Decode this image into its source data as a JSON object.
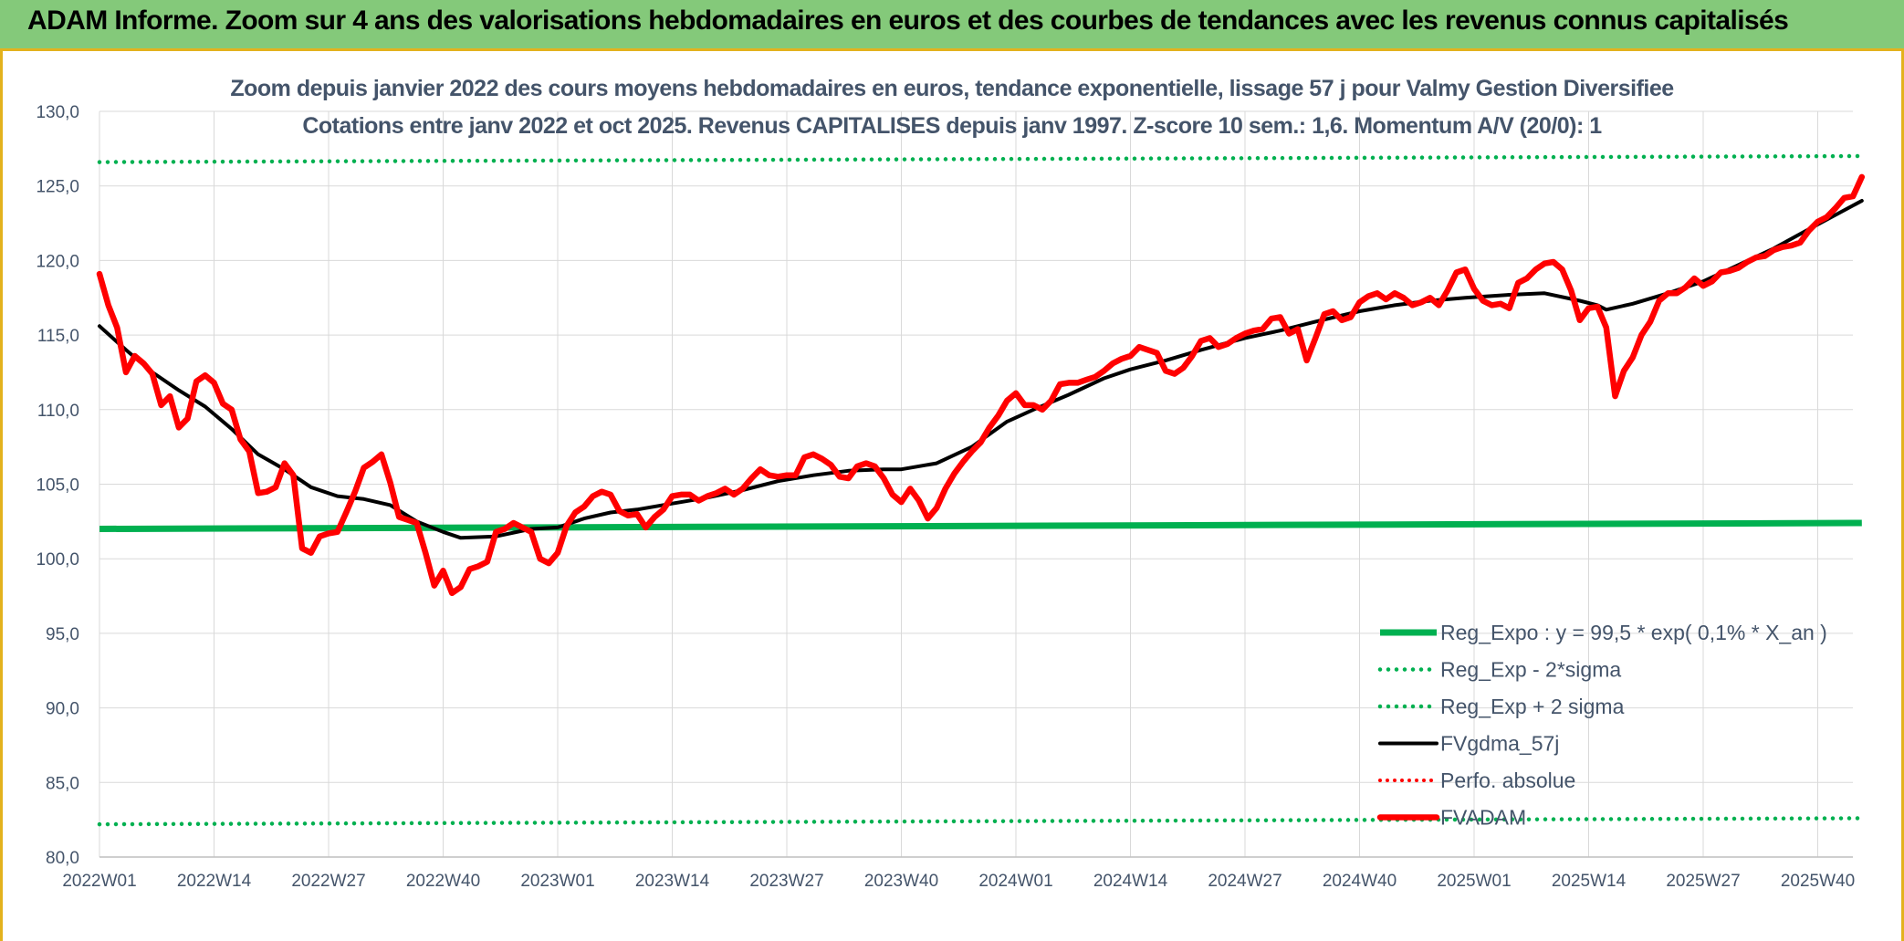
{
  "header": {
    "title": "ADAM Informe. Zoom sur 4 ans des valorisations hebdomadaires en euros et des courbes de tendances avec les revenus connus capitalisés"
  },
  "colors": {
    "banner": "#84c97a",
    "reg_expo": "#00b050",
    "fvgdma": "#000000",
    "fvadam": "#ff0000",
    "perfo": "#ff0000",
    "grid": "#d9d9d9",
    "text": "#44546a"
  },
  "chart_data": {
    "type": "line",
    "title": "Zoom depuis janvier 2022 des cours moyens hebdomadaires en euros, tendance exponentielle, lissage 57 j pour Valmy Gestion Diversifiee",
    "subtitle": "Cotations entre janv 2022 et oct 2025. Revenus CAPITALISES depuis janv 1997. Z-score 10 sem.: 1,6. Momentum A/V (20/0): 1",
    "ylim": [
      80,
      130
    ],
    "yticks": [
      "80,0",
      "85,0",
      "90,0",
      "95,0",
      "100,0",
      "105,0",
      "110,0",
      "115,0",
      "120,0",
      "125,0",
      "130,0"
    ],
    "xticks": [
      "2022W01",
      "2022W14",
      "2022W27",
      "2022W40",
      "2023W01",
      "2023W14",
      "2023W27",
      "2023W40",
      "2024W01",
      "2024W14",
      "2024W27",
      "2024W40",
      "2025W01",
      "2025W14",
      "2025W27",
      "2025W40"
    ],
    "grid": true,
    "legend_position": "bottom-right",
    "series": [
      {
        "name": "Reg_Expo : y = 99,5 * exp( 0,1% *  X_an )",
        "style": "solid-thick",
        "points": [
          [
            "2022W01",
            102.0
          ],
          [
            "2025W45",
            102.4
          ]
        ]
      },
      {
        "name": "Reg_Exp - 2*sigma",
        "style": "dotted",
        "points": [
          [
            "2022W01",
            82.2
          ],
          [
            "2025W45",
            82.6
          ]
        ]
      },
      {
        "name": "Reg_Exp + 2 sigma",
        "style": "dotted",
        "points": [
          [
            "2022W01",
            126.6
          ],
          [
            "2025W45",
            127.0
          ]
        ]
      },
      {
        "name": "FVgdma_57j",
        "style": "solid",
        "points": [
          [
            "2022W01",
            115.6
          ],
          [
            "2022W04",
            114.0
          ],
          [
            "2022W07",
            112.5
          ],
          [
            "2022W10",
            111.3
          ],
          [
            "2022W13",
            110.2
          ],
          [
            "2022W16",
            108.7
          ],
          [
            "2022W19",
            107.0
          ],
          [
            "2022W22",
            106.0
          ],
          [
            "2022W25",
            104.8
          ],
          [
            "2022W28",
            104.2
          ],
          [
            "2022W31",
            104.0
          ],
          [
            "2022W34",
            103.6
          ],
          [
            "2022W37",
            102.5
          ],
          [
            "2022W40",
            101.8
          ],
          [
            "2022W42",
            101.4
          ],
          [
            "2022W46",
            101.5
          ],
          [
            "2022W50",
            102.0
          ],
          [
            "2023W01",
            102.1
          ],
          [
            "2023W04",
            102.7
          ],
          [
            "2023W07",
            103.1
          ],
          [
            "2023W10",
            103.3
          ],
          [
            "2023W14",
            103.7
          ],
          [
            "2023W18",
            104.1
          ],
          [
            "2023W22",
            104.6
          ],
          [
            "2023W26",
            105.2
          ],
          [
            "2023W30",
            105.6
          ],
          [
            "2023W34",
            105.9
          ],
          [
            "2023W38",
            106.0
          ],
          [
            "2023W40",
            106.0
          ],
          [
            "2023W44",
            106.4
          ],
          [
            "2023W48",
            107.5
          ],
          [
            "2023W52",
            109.2
          ],
          [
            "2024W03",
            110.0
          ],
          [
            "2024W07",
            111.0
          ],
          [
            "2024W11",
            112.1
          ],
          [
            "2024W14",
            112.7
          ],
          [
            "2024W18",
            113.3
          ],
          [
            "2024W22",
            114.0
          ],
          [
            "2024W27",
            114.8
          ],
          [
            "2024W31",
            115.3
          ],
          [
            "2024W35",
            115.9
          ],
          [
            "2024W40",
            116.6
          ],
          [
            "2024W44",
            117.0
          ],
          [
            "2024W48",
            117.3
          ],
          [
            "2024W52",
            117.5
          ],
          [
            "2025W05",
            117.7
          ],
          [
            "2025W09",
            117.8
          ],
          [
            "2025W13",
            117.3
          ],
          [
            "2025W15",
            117.0
          ],
          [
            "2025W16",
            116.7
          ],
          [
            "2025W19",
            117.1
          ],
          [
            "2025W23",
            117.8
          ],
          [
            "2025W27",
            118.6
          ],
          [
            "2025W31",
            119.7
          ],
          [
            "2025W35",
            120.8
          ],
          [
            "2025W39",
            122.1
          ],
          [
            "2025W45",
            124.0
          ]
        ]
      },
      {
        "name": "Perfo. absolue",
        "style": "dotted",
        "points": []
      },
      {
        "name": "FVADAM",
        "style": "solid-thick",
        "points": [
          [
            "2022W01",
            119.1
          ],
          [
            "2022W02",
            117.0
          ],
          [
            "2022W03",
            115.5
          ],
          [
            "2022W04",
            112.5
          ],
          [
            "2022W05",
            113.6
          ],
          [
            "2022W06",
            113.1
          ],
          [
            "2022W07",
            112.4
          ],
          [
            "2022W08",
            110.3
          ],
          [
            "2022W09",
            110.9
          ],
          [
            "2022W10",
            108.8
          ],
          [
            "2022W11",
            109.4
          ],
          [
            "2022W12",
            111.9
          ],
          [
            "2022W13",
            112.3
          ],
          [
            "2022W14",
            111.8
          ],
          [
            "2022W15",
            110.4
          ],
          [
            "2022W16",
            110.0
          ],
          [
            "2022W17",
            108.0
          ],
          [
            "2022W18",
            107.2
          ],
          [
            "2022W19",
            104.4
          ],
          [
            "2022W20",
            104.5
          ],
          [
            "2022W21",
            104.8
          ],
          [
            "2022W22",
            106.4
          ],
          [
            "2022W23",
            105.6
          ],
          [
            "2022W24",
            100.7
          ],
          [
            "2022W25",
            100.4
          ],
          [
            "2022W26",
            101.5
          ],
          [
            "2022W27",
            101.7
          ],
          [
            "2022W28",
            101.8
          ],
          [
            "2022W29",
            103.1
          ],
          [
            "2022W30",
            104.5
          ],
          [
            "2022W31",
            106.1
          ],
          [
            "2022W32",
            106.5
          ],
          [
            "2022W33",
            107.0
          ],
          [
            "2022W34",
            105.1
          ],
          [
            "2022W35",
            102.8
          ],
          [
            "2022W36",
            102.6
          ],
          [
            "2022W37",
            102.4
          ],
          [
            "2022W38",
            100.4
          ],
          [
            "2022W39",
            98.2
          ],
          [
            "2022W40",
            99.2
          ],
          [
            "2022W41",
            97.7
          ],
          [
            "2022W42",
            98.1
          ],
          [
            "2022W43",
            99.3
          ],
          [
            "2022W44",
            99.5
          ],
          [
            "2022W45",
            99.8
          ],
          [
            "2022W46",
            101.8
          ],
          [
            "2022W47",
            102.0
          ],
          [
            "2022W48",
            102.4
          ],
          [
            "2022W49",
            102.1
          ],
          [
            "2022W50",
            101.8
          ],
          [
            "2022W51",
            100.0
          ],
          [
            "2022W52",
            99.7
          ],
          [
            "2023W01",
            100.4
          ],
          [
            "2023W02",
            102.2
          ],
          [
            "2023W03",
            103.1
          ],
          [
            "2023W04",
            103.5
          ],
          [
            "2023W05",
            104.2
          ],
          [
            "2023W06",
            104.5
          ],
          [
            "2023W07",
            104.3
          ],
          [
            "2023W08",
            103.2
          ],
          [
            "2023W09",
            102.9
          ],
          [
            "2023W10",
            103.0
          ],
          [
            "2023W11",
            102.1
          ],
          [
            "2023W12",
            102.8
          ],
          [
            "2023W13",
            103.3
          ],
          [
            "2023W14",
            104.2
          ],
          [
            "2023W15",
            104.3
          ],
          [
            "2023W16",
            104.3
          ],
          [
            "2023W17",
            103.9
          ],
          [
            "2023W18",
            104.2
          ],
          [
            "2023W19",
            104.4
          ],
          [
            "2023W20",
            104.7
          ],
          [
            "2023W21",
            104.3
          ],
          [
            "2023W22",
            104.7
          ],
          [
            "2023W23",
            105.4
          ],
          [
            "2023W24",
            106.0
          ],
          [
            "2023W25",
            105.6
          ],
          [
            "2023W26",
            105.5
          ],
          [
            "2023W27",
            105.6
          ],
          [
            "2023W28",
            105.6
          ],
          [
            "2023W29",
            106.8
          ],
          [
            "2023W30",
            107.0
          ],
          [
            "2023W31",
            106.7
          ],
          [
            "2023W32",
            106.3
          ],
          [
            "2023W33",
            105.5
          ],
          [
            "2023W34",
            105.4
          ],
          [
            "2023W35",
            106.2
          ],
          [
            "2023W36",
            106.4
          ],
          [
            "2023W37",
            106.2
          ],
          [
            "2023W38",
            105.4
          ],
          [
            "2023W39",
            104.3
          ],
          [
            "2023W40",
            103.8
          ],
          [
            "2023W41",
            104.7
          ],
          [
            "2023W42",
            103.9
          ],
          [
            "2023W43",
            102.7
          ],
          [
            "2023W44",
            103.4
          ],
          [
            "2023W45",
            104.7
          ],
          [
            "2023W46",
            105.7
          ],
          [
            "2023W47",
            106.5
          ],
          [
            "2023W48",
            107.2
          ],
          [
            "2023W49",
            107.8
          ],
          [
            "2023W50",
            108.8
          ],
          [
            "2023W51",
            109.6
          ],
          [
            "2023W52",
            110.6
          ],
          [
            "2024W01",
            111.1
          ],
          [
            "2024W02",
            110.3
          ],
          [
            "2024W03",
            110.3
          ],
          [
            "2024W04",
            110.0
          ],
          [
            "2024W05",
            110.6
          ],
          [
            "2024W06",
            111.7
          ],
          [
            "2024W07",
            111.8
          ],
          [
            "2024W08",
            111.8
          ],
          [
            "2024W09",
            112.0
          ],
          [
            "2024W10",
            112.2
          ],
          [
            "2024W11",
            112.6
          ],
          [
            "2024W12",
            113.1
          ],
          [
            "2024W13",
            113.4
          ],
          [
            "2024W14",
            113.6
          ],
          [
            "2024W15",
            114.2
          ],
          [
            "2024W16",
            114.0
          ],
          [
            "2024W17",
            113.8
          ],
          [
            "2024W18",
            112.6
          ],
          [
            "2024W19",
            112.4
          ],
          [
            "2024W20",
            112.8
          ],
          [
            "2024W21",
            113.6
          ],
          [
            "2024W22",
            114.6
          ],
          [
            "2024W23",
            114.8
          ],
          [
            "2024W24",
            114.2
          ],
          [
            "2024W25",
            114.4
          ],
          [
            "2024W26",
            114.8
          ],
          [
            "2024W27",
            115.1
          ],
          [
            "2024W28",
            115.3
          ],
          [
            "2024W29",
            115.4
          ],
          [
            "2024W30",
            116.1
          ],
          [
            "2024W31",
            116.2
          ],
          [
            "2024W32",
            115.1
          ],
          [
            "2024W33",
            115.4
          ],
          [
            "2024W34",
            113.3
          ],
          [
            "2024W35",
            114.8
          ],
          [
            "2024W36",
            116.4
          ],
          [
            "2024W37",
            116.6
          ],
          [
            "2024W38",
            116.0
          ],
          [
            "2024W39",
            116.2
          ],
          [
            "2024W40",
            117.2
          ],
          [
            "2024W41",
            117.6
          ],
          [
            "2024W42",
            117.8
          ],
          [
            "2024W43",
            117.4
          ],
          [
            "2024W44",
            117.8
          ],
          [
            "2024W45",
            117.5
          ],
          [
            "2024W46",
            117.0
          ],
          [
            "2024W47",
            117.2
          ],
          [
            "2024W48",
            117.5
          ],
          [
            "2024W49",
            117.0
          ],
          [
            "2024W50",
            118.0
          ],
          [
            "2024W51",
            119.2
          ],
          [
            "2024W52",
            119.4
          ],
          [
            "2025W01",
            118.1
          ],
          [
            "2025W02",
            117.3
          ],
          [
            "2025W03",
            117.0
          ],
          [
            "2025W04",
            117.1
          ],
          [
            "2025W05",
            116.8
          ],
          [
            "2025W06",
            118.5
          ],
          [
            "2025W07",
            118.8
          ],
          [
            "2025W08",
            119.4
          ],
          [
            "2025W09",
            119.8
          ],
          [
            "2025W10",
            119.9
          ],
          [
            "2025W11",
            119.4
          ],
          [
            "2025W12",
            118.0
          ],
          [
            "2025W13",
            116.0
          ],
          [
            "2025W14",
            116.8
          ],
          [
            "2025W15",
            116.9
          ],
          [
            "2025W16",
            115.5
          ],
          [
            "2025W17",
            110.9
          ],
          [
            "2025W18",
            112.6
          ],
          [
            "2025W19",
            113.5
          ],
          [
            "2025W20",
            115.0
          ],
          [
            "2025W21",
            115.9
          ],
          [
            "2025W22",
            117.3
          ],
          [
            "2025W23",
            117.8
          ],
          [
            "2025W24",
            117.8
          ],
          [
            "2025W25",
            118.2
          ],
          [
            "2025W26",
            118.8
          ],
          [
            "2025W27",
            118.3
          ],
          [
            "2025W28",
            118.6
          ],
          [
            "2025W29",
            119.2
          ],
          [
            "2025W30",
            119.3
          ],
          [
            "2025W31",
            119.5
          ],
          [
            "2025W32",
            119.9
          ],
          [
            "2025W33",
            120.2
          ],
          [
            "2025W34",
            120.3
          ],
          [
            "2025W35",
            120.7
          ],
          [
            "2025W36",
            120.9
          ],
          [
            "2025W37",
            121.0
          ],
          [
            "2025W38",
            121.2
          ],
          [
            "2025W39",
            122.0
          ],
          [
            "2025W40",
            122.6
          ],
          [
            "2025W41",
            122.9
          ],
          [
            "2025W42",
            123.5
          ],
          [
            "2025W43",
            124.2
          ],
          [
            "2025W44",
            124.3
          ],
          [
            "2025W45",
            125.6
          ]
        ]
      }
    ]
  }
}
